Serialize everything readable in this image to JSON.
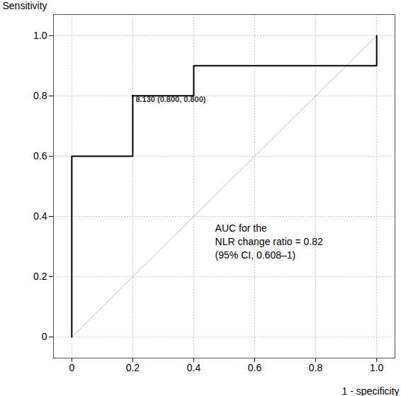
{
  "chart_data": {
    "type": "line",
    "x_label": "1 - specificity",
    "y_label": "Sensitivity",
    "xlim": [
      -0.06,
      1.06
    ],
    "ylim": [
      -0.07,
      1.07
    ],
    "xticks": [
      0,
      0.2,
      0.4,
      0.6,
      0.8,
      {
        "value": 1,
        "label": "1.0"
      }
    ],
    "yticks": [
      0,
      0.2,
      0.4,
      0.6,
      0.8,
      {
        "value": 1,
        "label": "1.0"
      }
    ],
    "grid": true,
    "series": [
      {
        "x": [
          0,
          0,
          0.2,
          0.2,
          0.4,
          0.4,
          1,
          1
        ],
        "values": [
          0,
          0.6,
          0.6,
          0.8,
          0.8,
          0.9,
          0.9,
          1
        ],
        "color": "#000000",
        "line_style": "solid"
      },
      {
        "x": [
          0,
          1
        ],
        "values": [
          0,
          1
        ],
        "color": "#bbbbbb",
        "line_style": "solid"
      }
    ],
    "annotations": [
      {
        "text": "8.130 (0.800, 0.800)",
        "x": 0.2,
        "y": 0.8
      },
      {
        "text": "AUC for the\nNLR change ratio = 0.82\n(95% CI, 0.608–1)",
        "x": 0.47,
        "y": 0.32
      }
    ]
  }
}
